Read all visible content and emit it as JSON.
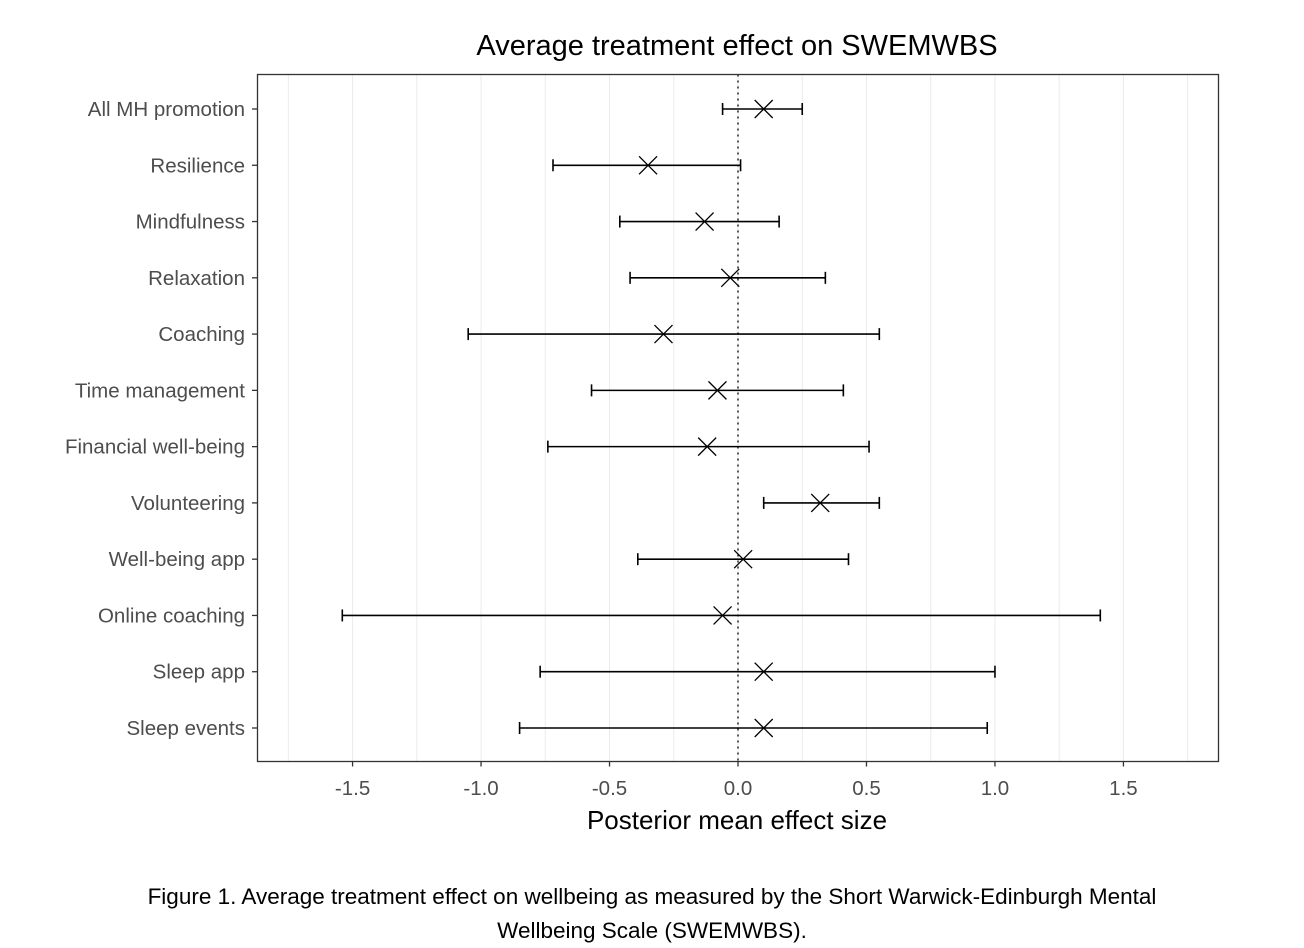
{
  "chart_data": {
    "type": "errorbar",
    "title": "Average treatment effect on SWEMWBS",
    "xlabel": "Posterior mean effect size",
    "ylabel": "",
    "xlim": [
      -1.87,
      1.87
    ],
    "xticks": [
      -1.5,
      -1.0,
      -0.5,
      0.0,
      0.5,
      1.0,
      1.5
    ],
    "xtick_labels": [
      "-1.5",
      "-1.0",
      "-0.5",
      "0.0",
      "0.5",
      "1.0",
      "1.5"
    ],
    "grid": "vertical minor and major",
    "reference_line": 0,
    "marker": "x",
    "categories": [
      "All MH promotion",
      "Resilience",
      "Mindfulness",
      "Relaxation",
      "Coaching",
      "Time management",
      "Financial well-being",
      "Volunteering",
      "Well-being app",
      "Online coaching",
      "Sleep app",
      "Sleep events"
    ],
    "mean": [
      0.1,
      -0.35,
      -0.13,
      -0.03,
      -0.29,
      -0.08,
      -0.12,
      0.32,
      0.02,
      -0.06,
      0.1,
      0.1
    ],
    "lower": [
      -0.06,
      -0.72,
      -0.46,
      -0.42,
      -1.05,
      -0.57,
      -0.74,
      0.1,
      -0.39,
      -1.54,
      -0.77,
      -0.85
    ],
    "upper": [
      0.25,
      0.01,
      0.16,
      0.34,
      0.55,
      0.41,
      0.51,
      0.55,
      0.43,
      1.41,
      1.0,
      0.97
    ]
  },
  "caption": {
    "line1": "Figure 1. Average treatment effect on wellbeing as measured by the Short Warwick-Edinburgh Mental",
    "line2": "Wellbeing Scale (SWEMWBS)."
  }
}
